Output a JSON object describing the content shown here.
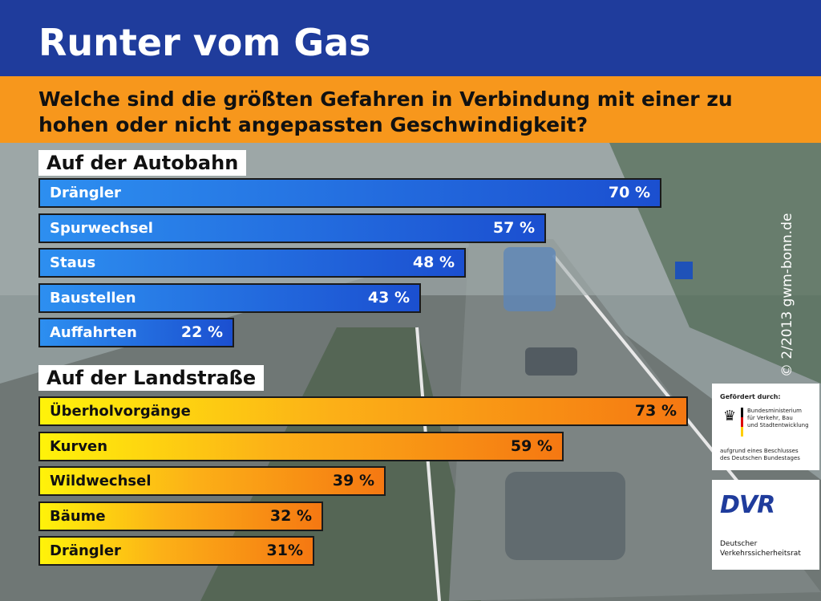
{
  "header": {
    "title": "Runter vom Gas",
    "question": "Welche sind die größten Gefahren in Verbindung mit einer zu hohen oder nicht angepassten Geschwindigkeit?"
  },
  "colors": {
    "header_bg": "#1f3c9c",
    "subheader_bg": "#f7971c",
    "autobahn_bar": "#1b4fd0",
    "landstrasse_bar": "#f57812"
  },
  "credit": "© 2/2013 gwm-bonn.de",
  "sponsor": {
    "heading": "Gefördert durch:",
    "ministry": "Bundesministerium\nfür Verkehr, Bau\nund Stadtentwicklung",
    "note": "aufgrund eines Beschlusses\ndes Deutschen Bundestages"
  },
  "dvr": {
    "mark": "DVR",
    "name": "Deutscher\nVerkehrssicherheitsrat"
  },
  "chart_data": [
    {
      "type": "bar",
      "orientation": "horizontal",
      "title": "Auf der Autobahn",
      "categories": [
        "Drängler",
        "Spurwechsel",
        "Staus",
        "Baustellen",
        "Auffahrten"
      ],
      "values": [
        70,
        57,
        48,
        43,
        22
      ],
      "value_labels": [
        "70 %",
        "57 %",
        "48 %",
        "43 %",
        "22 %"
      ],
      "unit": "%"
    },
    {
      "type": "bar",
      "orientation": "horizontal",
      "title": "Auf der Landstraße",
      "categories": [
        "Überholvorgänge",
        "Kurven",
        "Wildwechsel",
        "Bäume",
        "Drängler"
      ],
      "values": [
        73,
        59,
        39,
        32,
        31
      ],
      "value_labels": [
        "73 %",
        "59 %",
        "39 %",
        "32 %",
        "31%"
      ],
      "unit": "%"
    }
  ]
}
